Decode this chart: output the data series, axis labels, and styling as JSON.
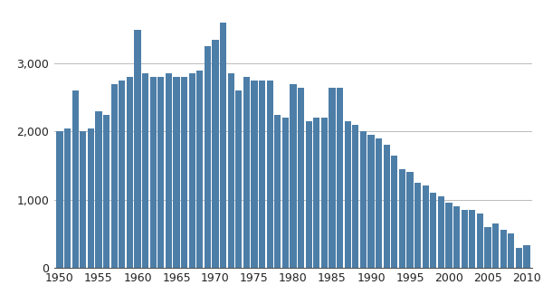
{
  "years": [
    1950,
    1951,
    1952,
    1953,
    1954,
    1955,
    1956,
    1957,
    1958,
    1959,
    1960,
    1961,
    1962,
    1963,
    1964,
    1965,
    1966,
    1967,
    1968,
    1969,
    1970,
    1971,
    1972,
    1973,
    1974,
    1975,
    1976,
    1977,
    1978,
    1979,
    1980,
    1981,
    1982,
    1983,
    1984,
    1985,
    1986,
    1987,
    1988,
    1989,
    1990,
    1991,
    1992,
    1993,
    1994,
    1995,
    1996,
    1997,
    1998,
    1999,
    2000,
    2001,
    2002,
    2003,
    2004,
    2005,
    2006,
    2007,
    2008,
    2009,
    2010
  ],
  "values": [
    2000,
    2050,
    2600,
    2000,
    2050,
    2300,
    2250,
    2700,
    2750,
    2800,
    3500,
    2850,
    2800,
    2800,
    2850,
    2800,
    2800,
    2850,
    2900,
    3250,
    3350,
    3600,
    2850,
    2600,
    2800,
    2750,
    2750,
    2750,
    2250,
    2200,
    2700,
    2650,
    2150,
    2200,
    2200,
    2650,
    2650,
    2150,
    2100,
    2000,
    1950,
    1900,
    1800,
    1650,
    1450,
    1400,
    1250,
    1200,
    1100,
    1050,
    950,
    900,
    850,
    850,
    800,
    600,
    650,
    550,
    500,
    290,
    330
  ],
  "bar_color": "#4d7ea8",
  "background_color": "#ffffff",
  "ylim": [
    0,
    3800
  ],
  "yticks": [
    0,
    1000,
    2000,
    3000
  ],
  "ytick_labels": [
    "0",
    "1,000",
    "2,000",
    "3,000"
  ],
  "xtick_years": [
    1950,
    1955,
    1960,
    1965,
    1970,
    1975,
    1980,
    1985,
    1990,
    1995,
    2000,
    2005,
    2010
  ],
  "grid_color": "#bbbbbb",
  "figsize": [
    6.0,
    3.36
  ],
  "dpi": 100
}
